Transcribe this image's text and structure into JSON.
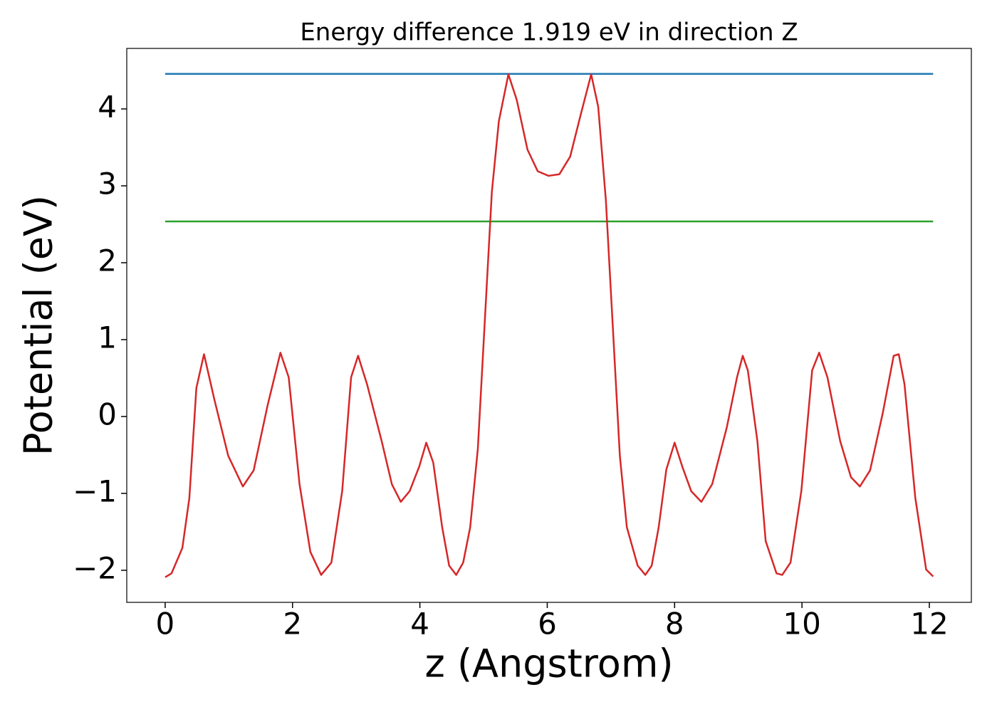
{
  "chart_data": {
    "type": "line",
    "title": "Energy difference 1.919 eV in direction Z",
    "x_label": "z (Angstrom)",
    "y_label": "Potential (eV)",
    "xlim": [
      -0.603,
      12.66
    ],
    "ylim": [
      -2.417,
      4.787
    ],
    "xticks": [
      0,
      2,
      4,
      6,
      8,
      10,
      12
    ],
    "yticks": [
      {
        "value": -2,
        "label": "−2"
      },
      {
        "value": -1,
        "label": "−1"
      },
      0,
      1,
      2,
      3,
      4
    ],
    "series": [
      {
        "color": "#1f77b4",
        "x": [
          0,
          12.06
        ],
        "values": [
          4.456,
          4.456
        ]
      },
      {
        "color": "#2ca02c",
        "x": [
          0,
          12.06
        ],
        "values": [
          2.537,
          2.537
        ]
      },
      {
        "color": "#d62728",
        "x": [
          0,
          0.1,
          0.27,
          0.38,
          0.49,
          0.61,
          0.77,
          0.99,
          1.22,
          1.39,
          1.61,
          1.81,
          1.94,
          2.11,
          2.28,
          2.45,
          2.61,
          2.78,
          2.92,
          3.03,
          3.17,
          3.4,
          3.56,
          3.7,
          3.84,
          3.99,
          4.1,
          4.21,
          4.35,
          4.46,
          4.57,
          4.68,
          4.79,
          4.91,
          5.02,
          5.13,
          5.24,
          5.39,
          5.52,
          5.69,
          5.85,
          6.02,
          6.19,
          6.36,
          6.53,
          6.69,
          6.8,
          6.92,
          7.03,
          7.14,
          7.25,
          7.42,
          7.54,
          7.64,
          7.75,
          7.87,
          8.0,
          8.12,
          8.26,
          8.42,
          8.59,
          8.82,
          8.98,
          9.07,
          9.15,
          9.3,
          9.43,
          9.6,
          9.69,
          9.82,
          9.99,
          10.16,
          10.27,
          10.4,
          10.6,
          10.77,
          10.91,
          11.07,
          11.27,
          11.44,
          11.52,
          11.61,
          11.78,
          11.95,
          12.06
        ],
        "values": [
          -2.09,
          -2.04,
          -1.71,
          -1.06,
          0.37,
          0.81,
          0.23,
          -0.51,
          -0.91,
          -0.7,
          0.15,
          0.83,
          0.51,
          -0.88,
          -1.76,
          -2.06,
          -1.9,
          -0.97,
          0.51,
          0.79,
          0.42,
          -0.32,
          -0.88,
          -1.11,
          -0.97,
          -0.65,
          -0.34,
          -0.6,
          -1.44,
          -1.94,
          -2.06,
          -1.9,
          -1.44,
          -0.42,
          1.25,
          2.92,
          3.84,
          4.45,
          4.12,
          3.47,
          3.19,
          3.13,
          3.15,
          3.38,
          3.94,
          4.45,
          4.03,
          2.82,
          1.16,
          -0.51,
          -1.44,
          -1.94,
          -2.06,
          -1.94,
          -1.44,
          -0.69,
          -0.34,
          -0.65,
          -0.97,
          -1.11,
          -0.88,
          -0.14,
          0.51,
          0.79,
          0.6,
          -0.32,
          -1.62,
          -2.04,
          -2.06,
          -1.9,
          -0.97,
          0.6,
          0.83,
          0.51,
          -0.32,
          -0.79,
          -0.91,
          -0.7,
          0.05,
          0.79,
          0.81,
          0.42,
          -1.06,
          -1.99,
          -2.08
        ]
      }
    ]
  }
}
